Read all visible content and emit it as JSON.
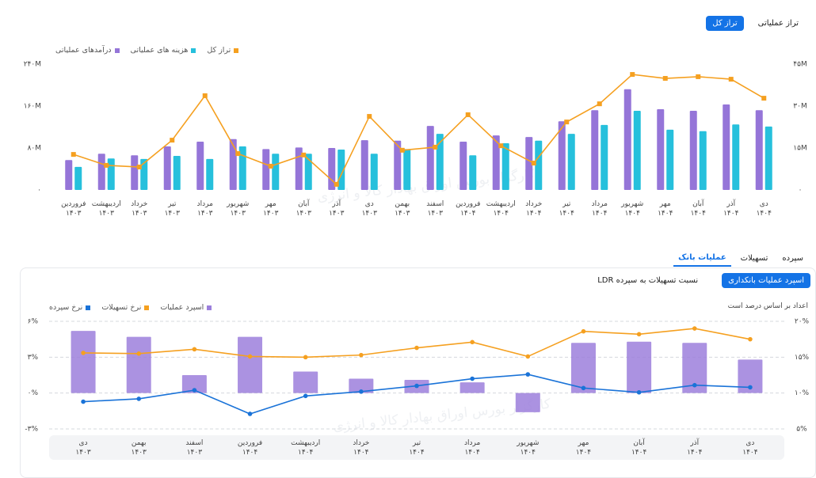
{
  "top_tabs": [
    {
      "label": "تراز عملیاتی",
      "active": false
    },
    {
      "label": "تراز کل",
      "active": true
    }
  ],
  "section_tabs": [
    {
      "label": "سپرده",
      "active": false
    },
    {
      "label": "تسهیلات",
      "active": false
    },
    {
      "label": "عملیات بانک",
      "active": true
    }
  ],
  "sub_tabs": [
    {
      "label": "اسپرد عملیات بانکداری",
      "active": true
    },
    {
      "label": "نسبت تسهیلات به سپرده LDR",
      "active": false
    }
  ],
  "note": "اعداد بر اساس درصد است",
  "watermark": "کارگزار بورس اوراق بهادار کالا و انرژی",
  "chart_data": [
    {
      "type": "bar",
      "categories": [
        "فروردین\n۱۴۰۳",
        "اردیبهشت\n۱۴۰۳",
        "خرداد\n۱۴۰۳",
        "تیر\n۱۴۰۳",
        "مرداد\n۱۴۰۳",
        "شهریور\n۱۴۰۳",
        "مهر\n۱۴۰۳",
        "آبان\n۱۴۰۳",
        "آذر\n۱۴۰۳",
        "دی\n۱۴۰۳",
        "بهمن\n۱۴۰۳",
        "اسفند\n۱۴۰۳",
        "فروردین\n۱۴۰۴",
        "اردیبهشت\n۱۴۰۴",
        "خرداد\n۱۴۰۴",
        "تیر\n۱۴۰۴",
        "مرداد\n۱۴۰۴",
        "شهریور\n۱۴۰۴",
        "مهر\n۱۴۰۴",
        "آبان\n۱۴۰۴",
        "آذر\n۱۴۰۴",
        "دی\n۱۴۰۴"
      ],
      "series": [
        {
          "name": "درآمدهای عملیاتی",
          "color": "#9575d8",
          "type": "bar",
          "values": [
            57,
            69,
            66,
            83,
            92,
            97,
            78,
            81,
            80,
            95,
            94,
            122,
            92,
            104,
            101,
            131,
            152,
            192,
            154,
            151,
            163,
            152
          ]
        },
        {
          "name": "هزینه های عملیاتی",
          "color": "#26c0dc",
          "type": "bar",
          "values": [
            44,
            60,
            59,
            65,
            59,
            83,
            69,
            69,
            77,
            69,
            78,
            107,
            66,
            89,
            94,
            107,
            124,
            151,
            115,
            112,
            125,
            121
          ]
        },
        {
          "name": "تراز کل",
          "color": "#f5a020",
          "type": "line",
          "axis": "y2",
          "values": [
            12.7,
            8.8,
            8.2,
            17.8,
            33.7,
            13,
            8.5,
            12.5,
            2,
            26.3,
            14.2,
            15.3,
            26.9,
            15.8,
            9.6,
            24.3,
            30.8,
            41.3,
            39.9,
            40.5,
            39.6,
            32.8
          ]
        }
      ],
      "ylim": [
        0,
        240
      ],
      "yticks": [
        {
          "value": 0,
          "label": "۰"
        },
        {
          "value": 80,
          "label": "۸۰M"
        },
        {
          "value": 160,
          "label": "۱۶۰M"
        },
        {
          "value": 240,
          "label": "۲۴۰M"
        }
      ],
      "y2lim": [
        0,
        45
      ],
      "y2ticks": [
        {
          "value": 0,
          "label": "۰"
        },
        {
          "value": 15,
          "label": "۱۵M"
        },
        {
          "value": 30,
          "label": "۳۰M"
        },
        {
          "value": 45,
          "label": "۴۵M"
        }
      ],
      "grid": false
    },
    {
      "type": "bar",
      "categories": [
        "دی\n۱۴۰۳",
        "بهمن\n۱۴۰۳",
        "اسفند\n۱۴۰۳",
        "فروردین\n۱۴۰۴",
        "اردیبهشت\n۱۴۰۴",
        "خرداد\n۱۴۰۴",
        "تیر\n۱۴۰۴",
        "مرداد\n۱۴۰۴",
        "شهریور\n۱۴۰۴",
        "مهر\n۱۴۰۴",
        "آبان\n۱۴۰۴",
        "آذر\n۱۴۰۴",
        "دی\n۱۴۰۴"
      ],
      "series": [
        {
          "name": "اسپرد عملیات",
          "color": "#9c7fdc",
          "type": "bar",
          "values": [
            5.2,
            4.7,
            1.5,
            4.7,
            1.8,
            1.2,
            1.1,
            0.9,
            -1.6,
            4.2,
            4.3,
            4.2,
            2.8
          ]
        },
        {
          "name": "نرخ تسهیلات",
          "color": "#f5a020",
          "type": "line",
          "axis": "y2",
          "values": [
            15.6,
            15.5,
            16.1,
            15.1,
            15,
            15.3,
            16.3,
            17.1,
            15.1,
            18.6,
            18.2,
            19,
            17.5
          ]
        },
        {
          "name": "نرخ سپرده",
          "color": "#1a73d8",
          "type": "line",
          "axis": "y2",
          "values": [
            8.8,
            9.2,
            10.4,
            7.1,
            9.6,
            10.2,
            11,
            12,
            12.6,
            10.7,
            10.1,
            11.1,
            10.8
          ]
        }
      ],
      "ylim": [
        -3,
        6
      ],
      "yticks": [
        {
          "value": -3,
          "label": "-۳%"
        },
        {
          "value": 0,
          "label": "۰%"
        },
        {
          "value": 3,
          "label": "۳%"
        },
        {
          "value": 6,
          "label": "۶%"
        }
      ],
      "y2lim": [
        5,
        20
      ],
      "y2ticks": [
        {
          "value": 5,
          "label": "۵%"
        },
        {
          "value": 10,
          "label": "۱۰%"
        },
        {
          "value": 15,
          "label": "۱۵%"
        },
        {
          "value": 20,
          "label": "۲۰%"
        }
      ],
      "grid": true
    }
  ]
}
